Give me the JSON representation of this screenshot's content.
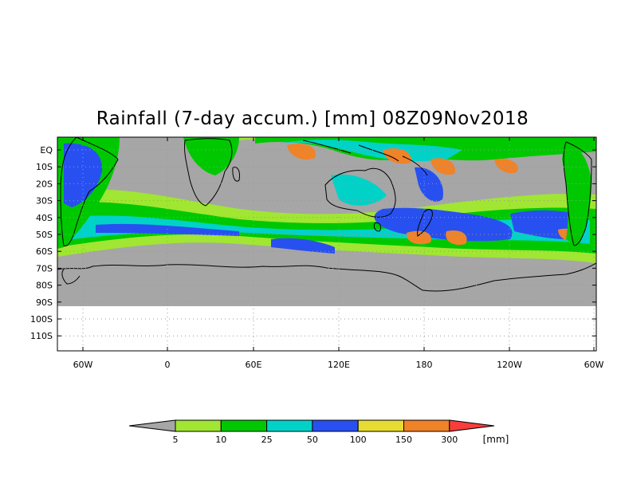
{
  "title": "Rainfall (7-day accum.) [mm] 08Z09Nov2018",
  "lat_labels": [
    "EQ",
    "10S",
    "20S",
    "30S",
    "40S",
    "50S",
    "60S",
    "70S",
    "80S",
    "90S",
    "100S",
    "110S"
  ],
  "lon_labels": [
    "60W",
    "0",
    "60E",
    "120E",
    "180",
    "120W",
    "60W"
  ],
  "colorbar": {
    "ticks": [
      "5",
      "10",
      "25",
      "50",
      "100",
      "150",
      "300"
    ],
    "unit": "[mm]",
    "colors": {
      "under": "#a6a6a6",
      "bins": [
        "#a0e632",
        "#00c800",
        "#00d2c8",
        "#2850f0",
        "#e6dc32",
        "#f08228"
      ],
      "over": "#fa3c3c"
    }
  },
  "map_colors": {
    "no_rain": "#a6a6a6",
    "outside_domain": "#ffffff"
  }
}
